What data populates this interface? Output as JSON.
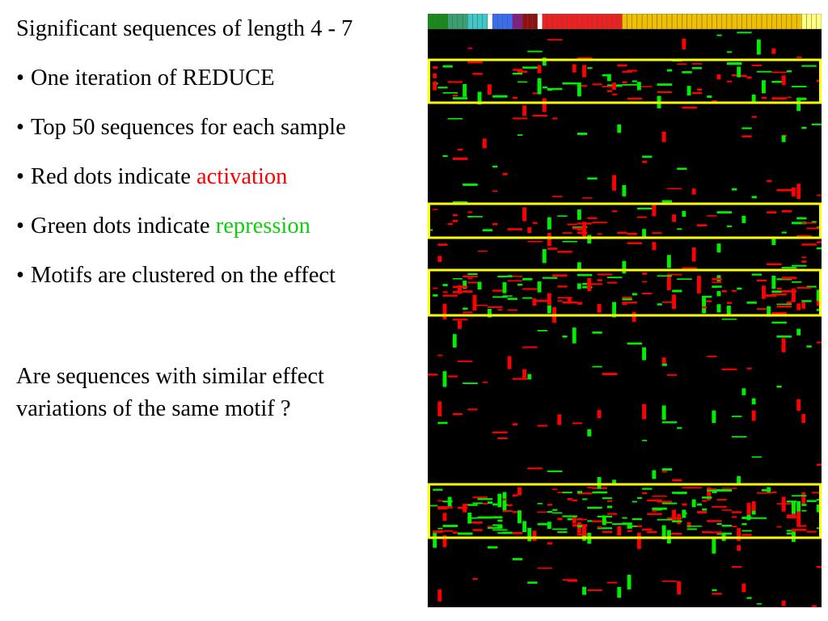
{
  "slide": {
    "title": "Significant sequences of length 4 - 7",
    "bullets": [
      {
        "text": "One iteration of REDUCE"
      },
      {
        "text": "Top 50 sequences for each sample"
      },
      {
        "text": "Red dots indicate ",
        "highlight": "activation",
        "highlight_color": "#ff0000"
      },
      {
        "text": "Green dots indicate ",
        "highlight": "repression",
        "highlight_color": "#11cc11"
      },
      {
        "text": "Motifs are clustered on the effect"
      }
    ],
    "bullet_char": "•",
    "question_line1": "Are sequences with similar effect",
    "question_line2": "variations of the same motif ?"
  },
  "heatmap": {
    "background_color": "#000000",
    "activation_color": "#ff0000",
    "repression_color": "#00ee00",
    "highlight_box_color": "#ffff00",
    "sample_groups": [
      {
        "color": "#1a8a1a",
        "count": 4
      },
      {
        "color": "#3aa070",
        "count": 4
      },
      {
        "color": "#40c8c8",
        "count": 4
      },
      {
        "color": "#ffffff",
        "count": 1
      },
      {
        "color": "#3a6ef0",
        "count": 4
      },
      {
        "color": "#802080",
        "count": 2
      },
      {
        "color": "#901010",
        "count": 3
      },
      {
        "color": "#ffffff",
        "count": 1
      },
      {
        "color": "#ee2020",
        "count": 16
      },
      {
        "color": "#f0c000",
        "count": 36
      },
      {
        "color": "#ffff80",
        "count": 4
      }
    ]
  }
}
